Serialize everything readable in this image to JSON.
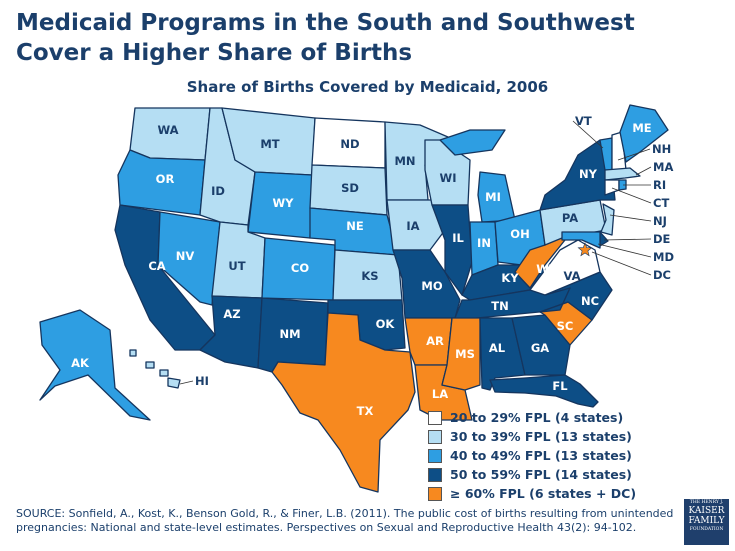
{
  "title": "Medicaid Programs in the South and Southwest Cover a Higher Share of Births",
  "subtitle": "Share of Births Covered by Medicaid, 2006",
  "colors": {
    "b1": "#ffffff",
    "b2": "#b5def3",
    "b3": "#2e9ee2",
    "b4": "#0d4e86",
    "b5": "#f7891f",
    "border": "#15355e"
  },
  "legend": [
    {
      "key": "b1",
      "label": "20 to 29% FPL (4 states)"
    },
    {
      "key": "b2",
      "label": "30 to 39% FPL (13 states)"
    },
    {
      "key": "b3",
      "label": "40 to 49% FPL (13 states)"
    },
    {
      "key": "b4",
      "label": "50 to 59% FPL (14 states)"
    },
    {
      "key": "b5",
      "label": "≥ 60% FPL (6 states + DC)"
    }
  ],
  "states": [
    {
      "code": "WA",
      "bin": "b2"
    },
    {
      "code": "OR",
      "bin": "b3"
    },
    {
      "code": "CA",
      "bin": "b4"
    },
    {
      "code": "NV",
      "bin": "b3"
    },
    {
      "code": "ID",
      "bin": "b2"
    },
    {
      "code": "MT",
      "bin": "b2"
    },
    {
      "code": "WY",
      "bin": "b3"
    },
    {
      "code": "UT",
      "bin": "b2"
    },
    {
      "code": "CO",
      "bin": "b3"
    },
    {
      "code": "AZ",
      "bin": "b4"
    },
    {
      "code": "NM",
      "bin": "b4"
    },
    {
      "code": "ND",
      "bin": "b1"
    },
    {
      "code": "SD",
      "bin": "b2"
    },
    {
      "code": "NE",
      "bin": "b3"
    },
    {
      "code": "KS",
      "bin": "b2"
    },
    {
      "code": "OK",
      "bin": "b4"
    },
    {
      "code": "TX",
      "bin": "b5"
    },
    {
      "code": "MN",
      "bin": "b2"
    },
    {
      "code": "IA",
      "bin": "b2"
    },
    {
      "code": "MO",
      "bin": "b4"
    },
    {
      "code": "AR",
      "bin": "b5"
    },
    {
      "code": "LA",
      "bin": "b5"
    },
    {
      "code": "WI",
      "bin": "b2"
    },
    {
      "code": "IL",
      "bin": "b4"
    },
    {
      "code": "MI",
      "bin": "b3"
    },
    {
      "code": "IN",
      "bin": "b3"
    },
    {
      "code": "OH",
      "bin": "b3"
    },
    {
      "code": "KY",
      "bin": "b4"
    },
    {
      "code": "TN",
      "bin": "b4"
    },
    {
      "code": "MS",
      "bin": "b5"
    },
    {
      "code": "AL",
      "bin": "b4"
    },
    {
      "code": "GA",
      "bin": "b4"
    },
    {
      "code": "FL",
      "bin": "b4"
    },
    {
      "code": "SC",
      "bin": "b5"
    },
    {
      "code": "NC",
      "bin": "b4"
    },
    {
      "code": "VA",
      "bin": "b1"
    },
    {
      "code": "WV",
      "bin": "b5"
    },
    {
      "code": "PA",
      "bin": "b2"
    },
    {
      "code": "NY",
      "bin": "b4"
    },
    {
      "code": "VT",
      "bin": "b3"
    },
    {
      "code": "NH",
      "bin": "b1"
    },
    {
      "code": "ME",
      "bin": "b3"
    },
    {
      "code": "MA",
      "bin": "b2"
    },
    {
      "code": "CT",
      "bin": "b1"
    },
    {
      "code": "RI",
      "bin": "b3"
    },
    {
      "code": "NJ",
      "bin": "b2"
    },
    {
      "code": "DE",
      "bin": "b4"
    },
    {
      "code": "MD",
      "bin": "b3"
    },
    {
      "code": "AK",
      "bin": "b3"
    },
    {
      "code": "HI",
      "bin": "b2"
    },
    {
      "code": "DC",
      "bin": "b5"
    }
  ],
  "source": "SOURCE: Sonfield, A., Kost, K., Benson Gold, R., & Finer, L.B. (2011). The public cost of births resulting from unintended pregnancies: National and state-level estimates. Perspectives on Sexual and Reproductive Health 43(2): 94-102.",
  "logo": {
    "line1": "THE HENRY J.",
    "line2": "KAISER",
    "line3": "FAMILY",
    "line4": "FOUNDATION"
  }
}
